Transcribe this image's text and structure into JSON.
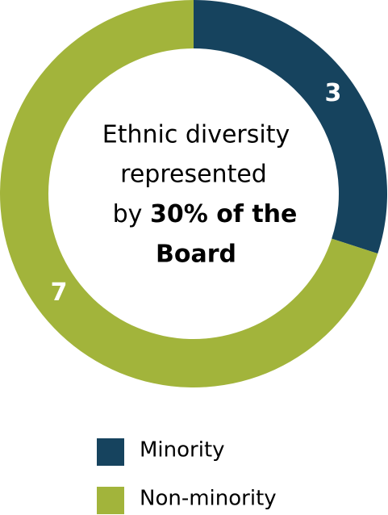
{
  "chart_data": {
    "type": "donut",
    "categories": [
      "Minority",
      "Non-minority"
    ],
    "values": [
      3,
      7
    ],
    "colors": [
      "#16435e",
      "#a2b43b"
    ],
    "center_text": [
      "Ethnic diversity",
      "represented",
      "by",
      "30% of the",
      "Board"
    ],
    "legend": "bottom"
  }
}
